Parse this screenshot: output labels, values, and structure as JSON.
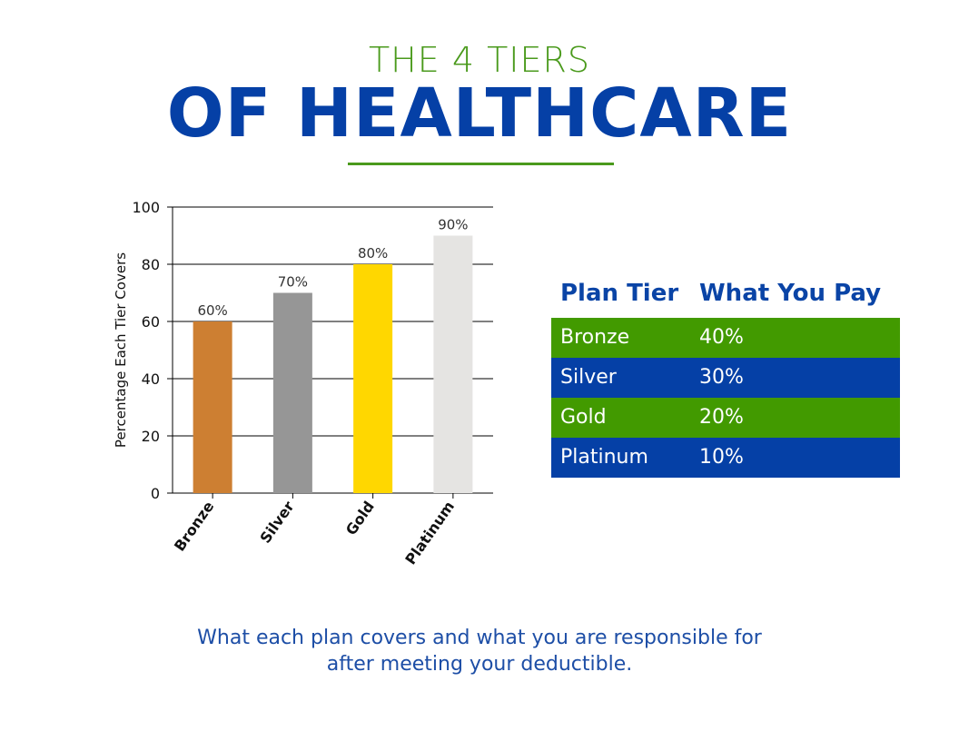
{
  "header": {
    "subtitle": "THE 4 TIERS",
    "title": "OF HEALTHCARE"
  },
  "chart_data": {
    "type": "bar",
    "categories": [
      "Bronze",
      "Silver",
      "Gold",
      "Platinum"
    ],
    "values": [
      60,
      70,
      80,
      90
    ],
    "data_labels": [
      "60%",
      "70%",
      "80%",
      "90%"
    ],
    "colors": [
      "#cd7f32",
      "#969696",
      "#ffd700",
      "#e5e4e2"
    ],
    "ylabel": "Percentage Each Tier Covers",
    "ylim": [
      0,
      100
    ],
    "yticks": [
      0,
      20,
      40,
      60,
      80,
      100
    ],
    "grid": "horizontal"
  },
  "table": {
    "headers": [
      "Plan Tier",
      "What You Pay"
    ],
    "rows": [
      {
        "tier": "Bronze",
        "pay": "40%",
        "color": "#429a00"
      },
      {
        "tier": "Silver",
        "pay": "30%",
        "color": "#0540a6"
      },
      {
        "tier": "Gold",
        "pay": "20%",
        "color": "#429a00"
      },
      {
        "tier": "Platinum",
        "pay": "10%",
        "color": "#0540a6"
      }
    ]
  },
  "caption": {
    "line1": "What each plan covers and what you are responsible for",
    "line2": "after meeting your deductible."
  }
}
